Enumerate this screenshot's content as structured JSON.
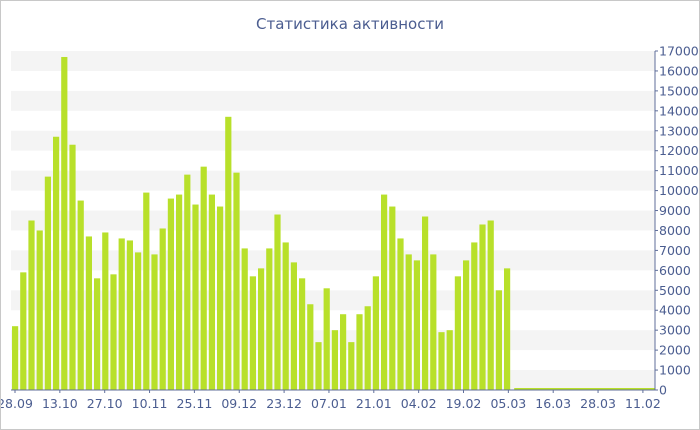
{
  "chart_data": {
    "type": "bar",
    "title": "Статистика активности",
    "xlabel": "",
    "ylabel": "",
    "ylim": [
      0,
      17000
    ],
    "yticks": [
      0,
      1000,
      2000,
      3000,
      4000,
      5000,
      6000,
      7000,
      8000,
      9000,
      10000,
      11000,
      12000,
      13000,
      14000,
      15000,
      16000,
      17000
    ],
    "yaxis_side": "right",
    "grid": "alternating horizontal bands",
    "legend": "none",
    "bar_color": "#b8e02a",
    "band_color": "#f4f4f4",
    "text_color": "#4b5d90",
    "xtick_labels": [
      "28.09",
      "13.10",
      "27.10",
      "10.11",
      "25.11",
      "09.12",
      "23.12",
      "07.01",
      "21.01",
      "04.02",
      "19.02",
      "05.03",
      "16.03",
      "28.03",
      "11.02"
    ],
    "values": [
      3200,
      5900,
      8500,
      8000,
      10700,
      12700,
      16700,
      12300,
      9500,
      7700,
      5600,
      7900,
      5800,
      7600,
      7500,
      6900,
      9900,
      6800,
      8100,
      9600,
      9800,
      10800,
      9300,
      11200,
      9800,
      9200,
      13700,
      10900,
      7100,
      5700,
      6100,
      7100,
      8800,
      7400,
      6400,
      5600,
      4300,
      2400,
      5100,
      3000,
      3800,
      2400,
      3800,
      4200,
      5700,
      9800,
      9200,
      7600,
      6800,
      6500,
      8700,
      6800,
      2900,
      3000,
      5700,
      6500,
      7400,
      8300,
      8500,
      5000,
      6100
    ]
  }
}
